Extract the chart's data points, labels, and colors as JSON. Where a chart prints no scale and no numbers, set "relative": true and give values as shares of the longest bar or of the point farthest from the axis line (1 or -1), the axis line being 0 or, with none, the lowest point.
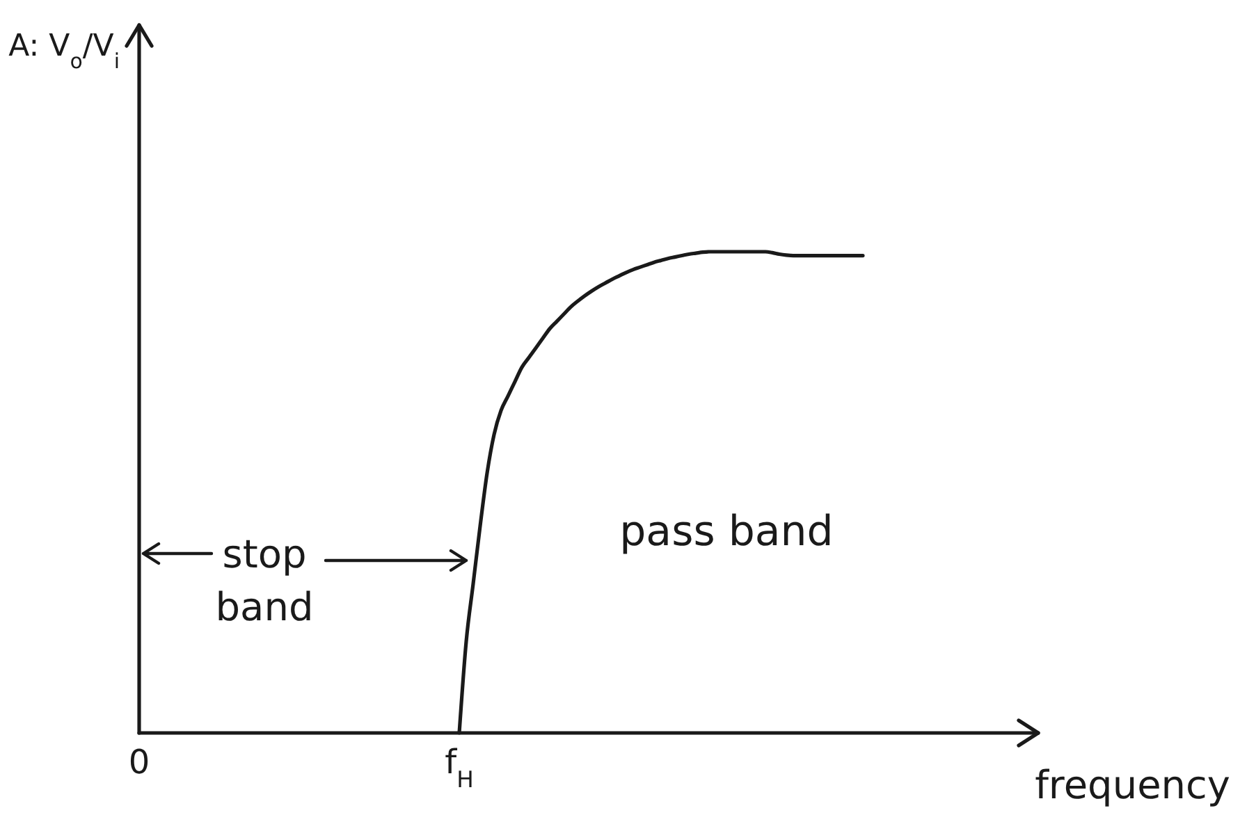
{
  "chart_data": {
    "type": "line",
    "relative": true,
    "color": "#1a1a1a",
    "xlabel": "frequency",
    "categories": [
      "0",
      null,
      null,
      null,
      null,
      null,
      null,
      null,
      null,
      null,
      null,
      null,
      null,
      null,
      null,
      null,
      null,
      null,
      null,
      null,
      null,
      null,
      null,
      null,
      null,
      null,
      null,
      null,
      null,
      null,
      null,
      null,
      null,
      null,
      null,
      null,
      null,
      null,
      null,
      null,
      null,
      null,
      null,
      null,
      null,
      null,
      "f$_{H}$",
      null,
      null,
      null,
      null,
      null,
      null,
      null,
      null,
      null,
      null,
      null,
      null,
      null,
      null,
      null,
      null,
      null,
      null,
      null,
      null,
      null,
      null,
      null,
      null,
      null,
      null,
      null,
      null,
      null,
      null,
      null,
      null,
      null,
      null,
      null,
      null,
      null,
      null,
      null,
      null,
      null,
      null,
      null,
      null,
      null,
      null,
      null,
      null,
      null,
      null,
      null,
      null,
      null,
      null,
      null,
      null,
      null,
      null,
      null,
      null,
      null,
      null,
      null,
      null,
      null,
      null,
      null,
      null,
      null,
      null,
      null,
      null,
      null,
      null,
      null,
      null,
      null,
      null,
      null,
      null,
      null,
      null
    ],
    "values": [
      null,
      null,
      null,
      null,
      null,
      null,
      null,
      null,
      null,
      null,
      null,
      null,
      null,
      null,
      null,
      null,
      null,
      null,
      null,
      null,
      null,
      null,
      null,
      null,
      null,
      null,
      null,
      null,
      null,
      null,
      null,
      null,
      null,
      null,
      null,
      null,
      null,
      null,
      null,
      null,
      null,
      null,
      null,
      null,
      null,
      null,
      0,
      0.19,
      0.31,
      0.43,
      0.54,
      0.62,
      0.67,
      0.7,
      0.73,
      0.76,
      0.78,
      0.8,
      0.82,
      0.84,
      0.855,
      0.87,
      0.885,
      0.897,
      0.908,
      0.918,
      0.927,
      0.935,
      0.943,
      0.95,
      0.957,
      0.963,
      0.968,
      0.973,
      0.978,
      0.982,
      0.986,
      0.989,
      0.992,
      0.995,
      0.997,
      0.999,
      1,
      1,
      1,
      1,
      1,
      1,
      1,
      1,
      1,
      0.998,
      0.995,
      0.993,
      0.992,
      0.992,
      0.992,
      0.992,
      0.992,
      0.992,
      0.992,
      0.992,
      0.992,
      0.992,
      0.992,
      null,
      null,
      null,
      null,
      null,
      null,
      null,
      null,
      null,
      null,
      null,
      null,
      null,
      null,
      null,
      null,
      null,
      null,
      null,
      null,
      null,
      null,
      null,
      null
    ],
    "annotations": [
      "A: V$_{o}$/V$_{i}$",
      "stop band",
      "pass band"
    ]
  }
}
